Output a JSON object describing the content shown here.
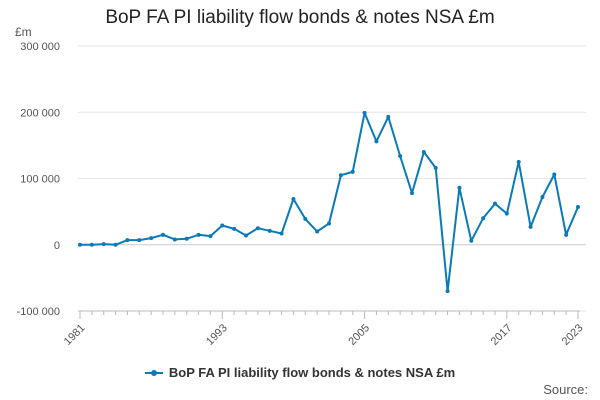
{
  "chart_data": {
    "type": "line",
    "title": "BoP FA PI liability flow bonds & notes NSA £m",
    "ylabel": "£m",
    "xlabel": "",
    "ylim": [
      -100000,
      300000
    ],
    "yticks": [
      300000,
      200000,
      100000,
      0,
      -100000
    ],
    "ytick_labels": [
      "300 000",
      "200 000",
      "100 000",
      "0",
      "-100 000"
    ],
    "xlim": [
      1981,
      2023
    ],
    "xticks": [
      1981,
      1993,
      2005,
      2017,
      2023
    ],
    "xtick_labels": [
      "1981",
      "1993",
      "2005",
      "2017",
      "2023"
    ],
    "grid": true,
    "legend_position": "bottom",
    "color": "#0b7ab8",
    "series": [
      {
        "name": "BoP FA PI liability flow bonds & notes NSA £m",
        "x": [
          1981,
          1982,
          1983,
          1984,
          1985,
          1986,
          1987,
          1988,
          1989,
          1990,
          1991,
          1992,
          1993,
          1994,
          1995,
          1996,
          1997,
          1998,
          1999,
          2000,
          2001,
          2002,
          2003,
          2004,
          2005,
          2006,
          2007,
          2008,
          2009,
          2010,
          2011,
          2012,
          2013,
          2014,
          2015,
          2016,
          2017,
          2018,
          2019,
          2020,
          2021,
          2022,
          2023
        ],
        "values": [
          0,
          0,
          1000,
          0,
          7000,
          7000,
          10000,
          15000,
          8000,
          9000,
          15000,
          13000,
          29000,
          24000,
          14000,
          25000,
          21000,
          17000,
          69000,
          39000,
          20000,
          32000,
          105000,
          110000,
          199000,
          156000,
          193000,
          134000,
          78000,
          140000,
          116000,
          -70000,
          86000,
          6000,
          40000,
          62000,
          47000,
          125000,
          27000,
          72000,
          106000,
          15000,
          57000
        ]
      }
    ]
  },
  "source_label": "Source:"
}
